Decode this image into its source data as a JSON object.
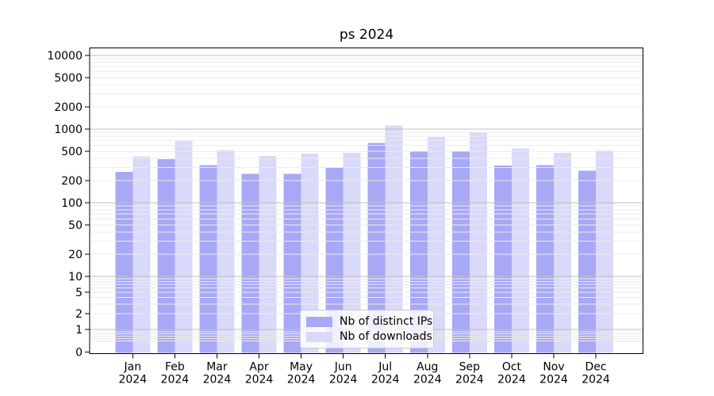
{
  "chart_data": {
    "type": "bar",
    "title": "ps 2024",
    "categories": [
      "Jan",
      "Feb",
      "Mar",
      "Apr",
      "May",
      "Jun",
      "Jul",
      "Aug",
      "Sep",
      "Oct",
      "Nov",
      "Dec"
    ],
    "category_year_line": "2024",
    "series": [
      {
        "name": "Nb of distinct IPs",
        "key": "distinct-ips",
        "color": "#a8a8f6",
        "values": [
          262,
          386,
          322,
          245,
          245,
          301,
          646,
          495,
          492,
          317,
          324,
          270
        ]
      },
      {
        "name": "Nb of downloads",
        "key": "downloads",
        "color": "#d9d9f9",
        "values": [
          423,
          690,
          516,
          431,
          464,
          475,
          1107,
          774,
          914,
          542,
          475,
          507
        ]
      }
    ],
    "yscale": "symlog",
    "ytick_labels": [
      "0",
      "1",
      "2",
      "5",
      "10",
      "20",
      "50",
      "100",
      "200",
      "500",
      "1000",
      "2000",
      "5000",
      "10000"
    ],
    "ytick_values": [
      0,
      1,
      2,
      5,
      10,
      20,
      50,
      100,
      200,
      500,
      1000,
      2000,
      5000,
      10000
    ],
    "ylim": [
      0,
      12000
    ],
    "grid": true,
    "legend_position": "lower-center",
    "colors": {
      "major_gridline": "#bfbfbf",
      "minor_gridline": "#ebebeb",
      "spine": "#000000",
      "text": "#000000"
    }
  }
}
